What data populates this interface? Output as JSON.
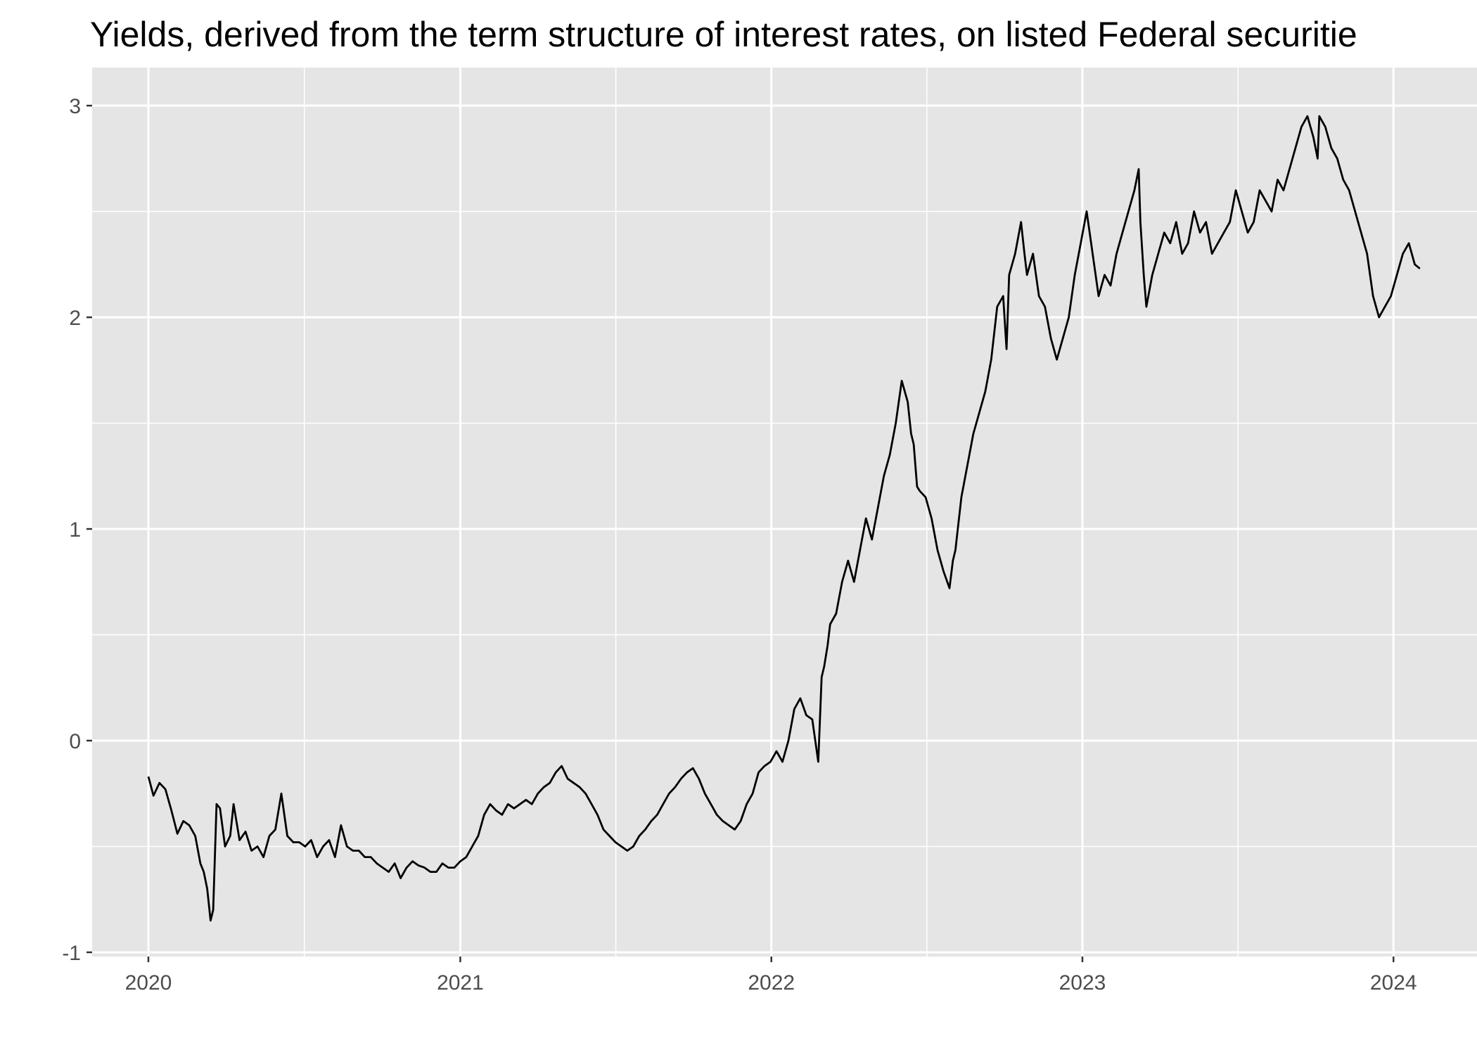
{
  "chart_data": {
    "type": "line",
    "title": "Yields, derived from the term structure of interest rates, on listed Federal securitie",
    "xlabel": "",
    "ylabel": "",
    "x_ticks": [
      "2020",
      "2021",
      "2022",
      "2023",
      "2024"
    ],
    "y_ticks": [
      "-1",
      "0",
      "1",
      "2",
      "3"
    ],
    "xlim": [
      "2019-10-27",
      "2024-04-08"
    ],
    "ylim": [
      -1.02,
      3.18
    ],
    "grid": true,
    "background": "#e5e5e5",
    "grid_color": "#ffffff",
    "line_color": "#000000",
    "series": [
      {
        "x": [
          "2020-01-01",
          "2020-01-07",
          "2020-01-14",
          "2020-01-21",
          "2020-01-28",
          "2020-02-04",
          "2020-02-11",
          "2020-02-18",
          "2020-02-25",
          "2020-03-02",
          "2020-03-06",
          "2020-03-10",
          "2020-03-14",
          "2020-03-17",
          "2020-03-21",
          "2020-03-25",
          "2020-03-31",
          "2020-04-06",
          "2020-04-10",
          "2020-04-17",
          "2020-04-24",
          "2020-05-01",
          "2020-05-08",
          "2020-05-15",
          "2020-05-22",
          "2020-05-29",
          "2020-06-05",
          "2020-06-12",
          "2020-06-19",
          "2020-06-26",
          "2020-07-03",
          "2020-07-10",
          "2020-07-17",
          "2020-07-24",
          "2020-07-31",
          "2020-08-07",
          "2020-08-14",
          "2020-08-21",
          "2020-08-28",
          "2020-09-04",
          "2020-09-11",
          "2020-09-18",
          "2020-09-25",
          "2020-10-02",
          "2020-10-09",
          "2020-10-16",
          "2020-10-23",
          "2020-10-30",
          "2020-11-06",
          "2020-11-13",
          "2020-11-20",
          "2020-11-27",
          "2020-12-04",
          "2020-12-11",
          "2020-12-18",
          "2020-12-25",
          "2021-01-01",
          "2021-01-08",
          "2021-01-15",
          "2021-01-22",
          "2021-01-29",
          "2021-02-05",
          "2021-02-12",
          "2021-02-19",
          "2021-02-26",
          "2021-03-05",
          "2021-03-12",
          "2021-03-19",
          "2021-03-26",
          "2021-04-02",
          "2021-04-09",
          "2021-04-16",
          "2021-04-23",
          "2021-04-30",
          "2021-05-07",
          "2021-05-14",
          "2021-05-21",
          "2021-05-28",
          "2021-06-04",
          "2021-06-11",
          "2021-06-18",
          "2021-06-25",
          "2021-07-02",
          "2021-07-09",
          "2021-07-16",
          "2021-07-23",
          "2021-07-30",
          "2021-08-06",
          "2021-08-13",
          "2021-08-20",
          "2021-08-27",
          "2021-09-03",
          "2021-09-10",
          "2021-09-17",
          "2021-09-24",
          "2021-10-01",
          "2021-10-08",
          "2021-10-15",
          "2021-10-22",
          "2021-10-29",
          "2021-11-05",
          "2021-11-12",
          "2021-11-19",
          "2021-11-26",
          "2021-12-03",
          "2021-12-10",
          "2021-12-17",
          "2021-12-24",
          "2021-12-31",
          "2022-01-07",
          "2022-01-14",
          "2022-01-21",
          "2022-01-28",
          "2022-02-04",
          "2022-02-11",
          "2022-02-18",
          "2022-02-25",
          "2022-03-01",
          "2022-03-04",
          "2022-03-08",
          "2022-03-11",
          "2022-03-18",
          "2022-03-25",
          "2022-04-01",
          "2022-04-08",
          "2022-04-15",
          "2022-04-22",
          "2022-04-29",
          "2022-05-06",
          "2022-05-13",
          "2022-05-20",
          "2022-05-27",
          "2022-06-03",
          "2022-06-10",
          "2022-06-14",
          "2022-06-17",
          "2022-06-21",
          "2022-06-24",
          "2022-07-01",
          "2022-07-08",
          "2022-07-15",
          "2022-07-22",
          "2022-07-29",
          "2022-08-02",
          "2022-08-05",
          "2022-08-12",
          "2022-08-19",
          "2022-08-26",
          "2022-09-02",
          "2022-09-09",
          "2022-09-16",
          "2022-09-23",
          "2022-09-30",
          "2022-10-04",
          "2022-10-07",
          "2022-10-14",
          "2022-10-21",
          "2022-10-25",
          "2022-10-28",
          "2022-11-04",
          "2022-11-11",
          "2022-11-18",
          "2022-11-25",
          "2022-12-02",
          "2022-12-09",
          "2022-12-16",
          "2022-12-23",
          "2022-12-30",
          "2023-01-06",
          "2023-01-13",
          "2023-01-20",
          "2023-01-27",
          "2023-02-03",
          "2023-02-10",
          "2023-02-17",
          "2023-02-24",
          "2023-03-03",
          "2023-03-08",
          "2023-03-10",
          "2023-03-14",
          "2023-03-17",
          "2023-03-24",
          "2023-03-31",
          "2023-04-07",
          "2023-04-14",
          "2023-04-21",
          "2023-04-28",
          "2023-05-05",
          "2023-05-12",
          "2023-05-19",
          "2023-05-26",
          "2023-06-02",
          "2023-06-09",
          "2023-06-16",
          "2023-06-23",
          "2023-06-30",
          "2023-07-07",
          "2023-07-14",
          "2023-07-21",
          "2023-07-28",
          "2023-08-04",
          "2023-08-11",
          "2023-08-18",
          "2023-08-25",
          "2023-09-01",
          "2023-09-08",
          "2023-09-15",
          "2023-09-22",
          "2023-09-29",
          "2023-10-04",
          "2023-10-06",
          "2023-10-13",
          "2023-10-20",
          "2023-10-27",
          "2023-11-03",
          "2023-11-10",
          "2023-11-17",
          "2023-11-24",
          "2023-12-01",
          "2023-12-08",
          "2023-12-15",
          "2023-12-22",
          "2023-12-29",
          "2024-01-05",
          "2024-01-12",
          "2024-01-19",
          "2024-01-26",
          "2024-02-01"
        ],
        "y": [
          -0.17,
          -0.26,
          -0.2,
          -0.23,
          -0.33,
          -0.44,
          -0.38,
          -0.4,
          -0.45,
          -0.58,
          -0.62,
          -0.7,
          -0.85,
          -0.8,
          -0.3,
          -0.32,
          -0.5,
          -0.45,
          -0.3,
          -0.47,
          -0.43,
          -0.52,
          -0.5,
          -0.55,
          -0.45,
          -0.42,
          -0.25,
          -0.45,
          -0.48,
          -0.48,
          -0.5,
          -0.47,
          -0.55,
          -0.5,
          -0.47,
          -0.55,
          -0.4,
          -0.5,
          -0.52,
          -0.52,
          -0.55,
          -0.55,
          -0.58,
          -0.6,
          -0.62,
          -0.58,
          -0.65,
          -0.6,
          -0.57,
          -0.59,
          -0.6,
          -0.62,
          -0.62,
          -0.58,
          -0.6,
          -0.6,
          -0.57,
          -0.55,
          -0.5,
          -0.45,
          -0.35,
          -0.3,
          -0.33,
          -0.35,
          -0.3,
          -0.32,
          -0.3,
          -0.28,
          -0.3,
          -0.25,
          -0.22,
          -0.2,
          -0.15,
          -0.12,
          -0.18,
          -0.2,
          -0.22,
          -0.25,
          -0.3,
          -0.35,
          -0.42,
          -0.45,
          -0.48,
          -0.5,
          -0.52,
          -0.5,
          -0.45,
          -0.42,
          -0.38,
          -0.35,
          -0.3,
          -0.25,
          -0.22,
          -0.18,
          -0.15,
          -0.13,
          -0.18,
          -0.25,
          -0.3,
          -0.35,
          -0.38,
          -0.4,
          -0.42,
          -0.38,
          -0.3,
          -0.25,
          -0.15,
          -0.12,
          -0.1,
          -0.05,
          -0.1,
          0.0,
          0.15,
          0.2,
          0.12,
          0.1,
          -0.1,
          0.3,
          0.35,
          0.45,
          0.55,
          0.6,
          0.75,
          0.85,
          0.75,
          0.9,
          1.05,
          0.95,
          1.1,
          1.25,
          1.35,
          1.5,
          1.7,
          1.6,
          1.45,
          1.4,
          1.2,
          1.18,
          1.15,
          1.05,
          0.9,
          0.8,
          0.72,
          0.85,
          0.9,
          1.15,
          1.3,
          1.45,
          1.55,
          1.65,
          1.8,
          2.05,
          2.1,
          1.85,
          2.2,
          2.3,
          2.45,
          2.3,
          2.2,
          2.3,
          2.1,
          2.05,
          1.9,
          1.8,
          1.9,
          2.0,
          2.2,
          2.35,
          2.5,
          2.3,
          2.1,
          2.2,
          2.15,
          2.3,
          2.4,
          2.5,
          2.6,
          2.7,
          2.45,
          2.2,
          2.05,
          2.2,
          2.3,
          2.4,
          2.35,
          2.45,
          2.3,
          2.35,
          2.5,
          2.4,
          2.45,
          2.3,
          2.35,
          2.4,
          2.45,
          2.6,
          2.5,
          2.4,
          2.45,
          2.6,
          2.55,
          2.5,
          2.65,
          2.6,
          2.7,
          2.8,
          2.9,
          2.95,
          2.85,
          2.75,
          2.95,
          2.9,
          2.8,
          2.75,
          2.65,
          2.6,
          2.5,
          2.4,
          2.3,
          2.1,
          2.0,
          2.05,
          2.1,
          2.2,
          2.3,
          2.35,
          2.25,
          2.23
        ]
      }
    ]
  }
}
